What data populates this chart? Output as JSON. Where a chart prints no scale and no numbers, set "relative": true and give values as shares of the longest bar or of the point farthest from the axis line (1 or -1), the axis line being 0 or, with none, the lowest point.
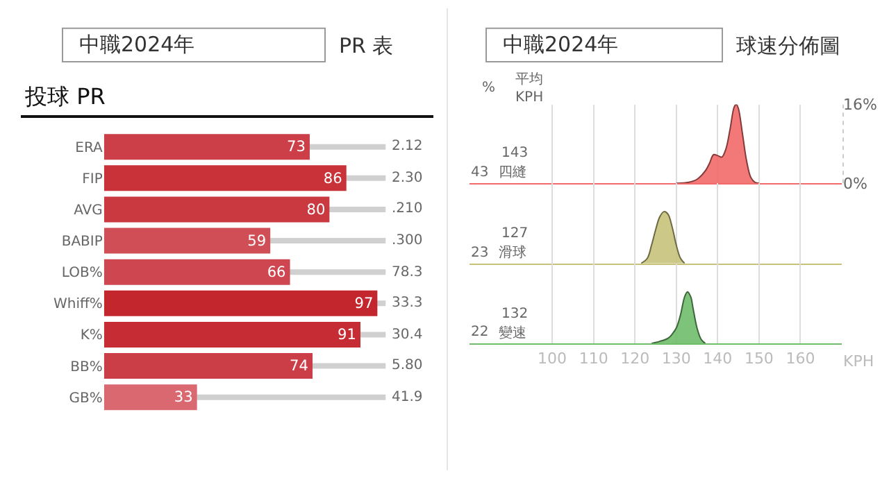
{
  "chart_data": [
    {
      "type": "bar",
      "orientation": "horizontal",
      "title": "投球 PR",
      "subtitle": "PR 表",
      "categories": [
        "ERA",
        "FIP",
        "AVG",
        "BABIP",
        "LOB%",
        "Whiff%",
        "K%",
        "BB%",
        "GB%"
      ],
      "values": [
        73,
        86,
        80,
        59,
        66,
        97,
        91,
        74,
        33
      ],
      "colors": [
        "#cc3f48",
        "#c83238",
        "#ca3940",
        "#d04e56",
        "#ce4650",
        "#c3262d",
        "#c62c33",
        "#cc3e47",
        "#d96871"
      ],
      "xlim": [
        0,
        100
      ],
      "data_labels": true,
      "tick_labels": "y",
      "annotations": [
        "中職2024年",
        "2.12",
        "2.30",
        ".210",
        ".300",
        "78.3",
        "33.3",
        "30.4",
        "5.80",
        "41.9"
      ]
    },
    {
      "type": "area",
      "subtitle": "球速分佈圖",
      "xlim": [
        80,
        170
      ],
      "xticks": [
        100,
        110,
        120,
        130,
        140,
        150,
        160
      ],
      "ylim": [
        0,
        16
      ],
      "yticks": [
        {
          "value": 0,
          "label": "0%"
        },
        {
          "value": 16,
          "label": "16%"
        }
      ],
      "grid": "x",
      "tick_labels": "y",
      "annotations": [
        "中職2024年",
        "%",
        "平均\nKPH",
        "43",
        "143"
      ],
      "series": [
        {
          "name": "四縫",
          "color": "#f26a6a",
          "x": [
            130,
            133,
            135,
            137,
            138,
            139,
            140,
            141,
            142,
            143,
            144,
            144.5,
            145,
            146,
            147,
            148,
            149,
            150
          ],
          "values": [
            0,
            0.2,
            0.8,
            2.5,
            4,
            5.8,
            5.6,
            5.3,
            7,
            11,
            15.5,
            16,
            15.2,
            10,
            4.5,
            1.2,
            0.2,
            0
          ]
        }
      ]
    },
    {
      "type": "area",
      "relative": true,
      "xlim": [
        80,
        170
      ],
      "xticks": [
        100,
        110,
        120,
        130,
        140,
        150,
        160
      ],
      "grid": "x",
      "tick_labels": false,
      "annotations": [
        "23",
        "127"
      ],
      "series": [
        {
          "name": "滑球",
          "color": "#c7c27a",
          "x": [
            121.5,
            123,
            124,
            125,
            126,
            127,
            128,
            129,
            130,
            131,
            132
          ],
          "values": [
            0,
            0.1,
            0.35,
            0.65,
            0.9,
            1,
            0.95,
            0.7,
            0.35,
            0.1,
            0
          ]
        }
      ]
    },
    {
      "type": "area",
      "relative": true,
      "xlim": [
        80,
        170
      ],
      "xticks": [
        100,
        110,
        120,
        130,
        140,
        150,
        160
      ],
      "grid": "x",
      "tick_labels": "x",
      "xlabel": "KPH",
      "annotations": [
        "22",
        "132"
      ],
      "series": [
        {
          "name": "變速",
          "color": "#6fbd6a",
          "x": [
            124,
            126,
            128,
            129,
            130,
            131,
            132,
            132.7,
            133.5,
            134,
            135,
            136,
            137
          ],
          "values": [
            0,
            0.04,
            0.1,
            0.18,
            0.3,
            0.55,
            0.9,
            1,
            0.9,
            0.7,
            0.3,
            0.08,
            0
          ]
        }
      ]
    }
  ]
}
